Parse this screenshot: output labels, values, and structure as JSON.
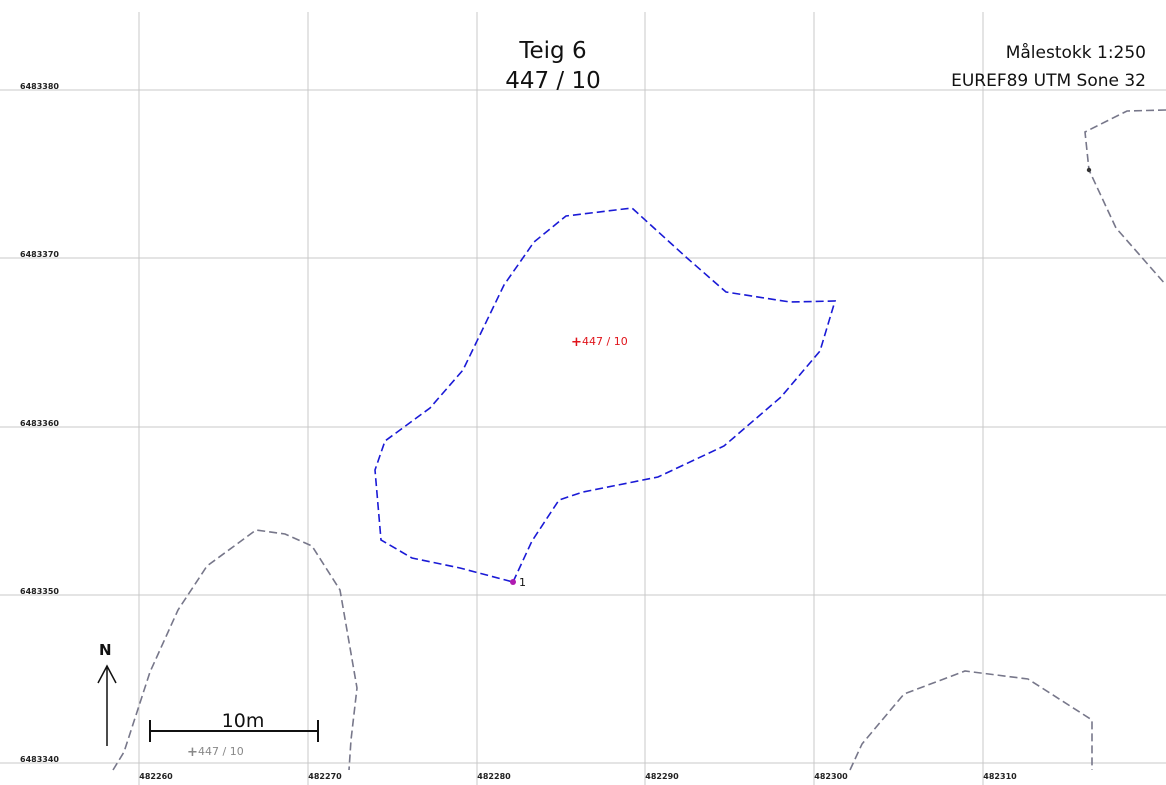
{
  "title": {
    "line1": "Teig 6",
    "line2": "447 / 10"
  },
  "meta": {
    "scale": "Målestokk 1:250",
    "crs": "EUREF89 UTM Sone 32"
  },
  "grid": {
    "eastings": [
      "482260",
      "482270",
      "482280",
      "482290",
      "482300",
      "482310"
    ],
    "northings": [
      "6483380",
      "6483370",
      "6483360",
      "6483350",
      "6483340"
    ]
  },
  "parcel": {
    "label": "447 / 10",
    "point_label": "1",
    "color": "#1a1ad6",
    "label_color": "#e0141b"
  },
  "neighbor": {
    "label": "447 / 10",
    "color": "#77778a"
  },
  "north_arrow": {
    "label": "N"
  },
  "scale_bar": {
    "label": "10m"
  },
  "colors": {
    "grid": "#c8c8c8",
    "text": "#111111",
    "point": "#b01ab0"
  }
}
